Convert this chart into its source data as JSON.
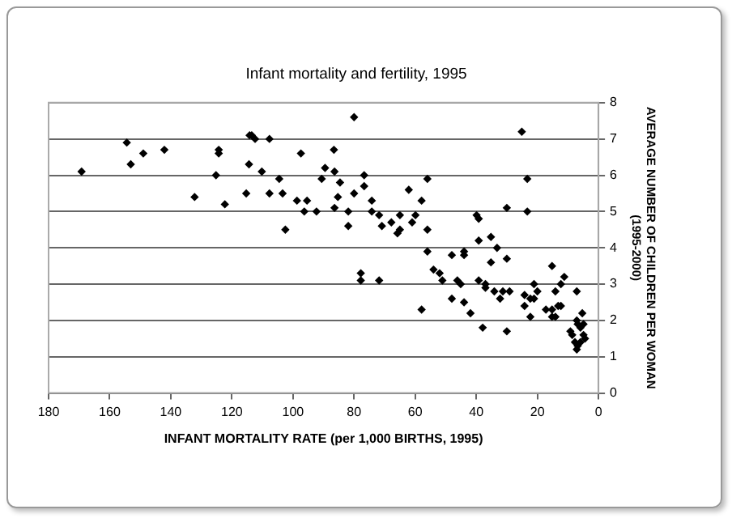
{
  "chart_data": {
    "type": "scatter",
    "title": "Infant mortality and fertility, 1995",
    "xlabel": "INFANT MORTALITY RATE (per 1,000 BIRTHS, 1995)",
    "ylabel": "AVERAGE NUMBER OF CHILDREN PER WOMAN\n(1995-2000)",
    "xlim": [
      180,
      0
    ],
    "xticks": [
      180,
      160,
      140,
      120,
      100,
      80,
      60,
      40,
      20,
      0
    ],
    "ylim": [
      0,
      8
    ],
    "yticks": [
      0,
      1,
      2,
      3,
      4,
      5,
      6,
      7,
      8
    ],
    "grid": "y",
    "legend": false,
    "marker": "diamond",
    "series": [
      {
        "color": "#000000",
        "x": [
          169.2,
          154.4,
          153.1,
          149.0,
          142.1,
          132.2,
          125.2,
          124.3,
          124.3,
          122.3,
          115.3,
          114.4,
          114.2,
          113.5,
          112.4,
          110.2,
          107.7,
          107.7,
          104.5,
          103.4,
          102.5,
          98.7,
          97.4,
          96.3,
          95.4,
          92.3,
          90.6,
          89.5,
          86.6,
          86.4,
          86.4,
          85.3,
          84.6,
          80.0,
          80.0,
          81.9,
          81.9,
          76.7,
          76.7,
          74.2,
          74.2,
          71.8,
          70.9,
          67.8,
          65.8,
          65.0,
          65.0,
          62.1,
          61.0,
          59.9,
          57.9,
          56.0,
          56.0,
          56.0,
          57.9,
          77.8,
          77.8,
          71.8,
          54.0,
          52.0,
          51.1,
          48.0,
          48.0,
          46.2,
          45.1,
          44.0,
          44.0,
          44.0,
          41.9,
          39.9,
          39.2,
          39.2,
          39.2,
          37.9,
          37.0,
          37.0,
          35.2,
          35.2,
          34.1,
          33.2,
          32.2,
          31.3,
          30.0,
          30.0,
          30.0,
          29.1,
          25.1,
          24.2,
          24.2,
          23.3,
          23.3,
          22.3,
          22.3,
          21.1,
          21.1,
          20.0,
          17.2,
          15.2,
          15.2,
          15.2,
          14.1,
          14.1,
          13.2,
          12.3,
          12.3,
          11.2,
          7.1,
          5.3,
          7.1,
          9.2,
          8.6,
          7.7,
          6.8,
          5.9,
          4.9,
          5.9,
          6.8,
          4.9,
          4.4,
          7.1
        ],
        "values": [
          6.1,
          6.9,
          6.3,
          6.6,
          6.7,
          5.4,
          6.0,
          6.7,
          6.6,
          5.2,
          5.5,
          6.3,
          7.1,
          7.1,
          7.0,
          6.1,
          5.5,
          7.0,
          5.9,
          5.5,
          4.5,
          5.3,
          6.6,
          5.0,
          5.3,
          5.0,
          5.9,
          6.2,
          6.7,
          6.1,
          5.1,
          5.4,
          5.8,
          7.6,
          5.5,
          5.0,
          4.6,
          6.0,
          5.7,
          5.3,
          5.0,
          4.9,
          4.6,
          4.7,
          4.4,
          4.5,
          4.9,
          5.6,
          4.7,
          4.9,
          5.3,
          5.9,
          4.5,
          3.9,
          2.3,
          3.3,
          3.1,
          3.1,
          3.4,
          3.3,
          3.1,
          3.8,
          2.6,
          3.1,
          3.0,
          3.9,
          3.8,
          2.5,
          2.2,
          4.9,
          4.8,
          4.2,
          3.1,
          1.8,
          3.0,
          2.9,
          3.6,
          4.3,
          2.8,
          4.0,
          2.6,
          2.8,
          3.7,
          5.1,
          1.7,
          2.8,
          7.2,
          2.7,
          2.4,
          5.9,
          5.0,
          2.6,
          2.1,
          3.0,
          2.6,
          2.8,
          2.3,
          3.5,
          2.3,
          2.1,
          2.8,
          2.1,
          2.4,
          2.4,
          3.0,
          3.2,
          2.8,
          2.2,
          2.0,
          1.7,
          1.6,
          1.4,
          1.3,
          1.4,
          1.6,
          1.8,
          1.9,
          1.9,
          1.5,
          1.2
        ]
      }
    ]
  }
}
